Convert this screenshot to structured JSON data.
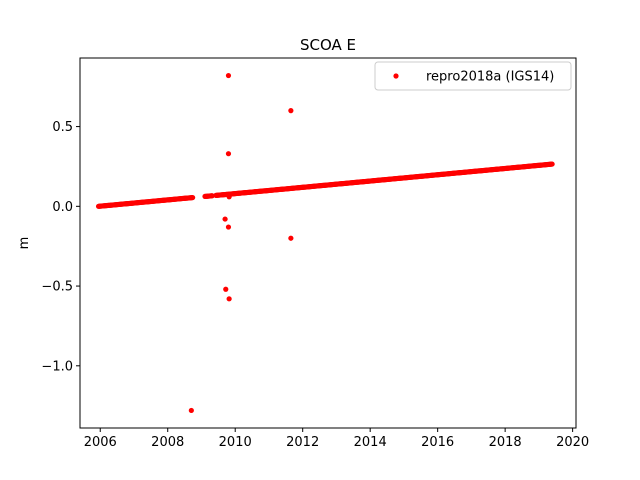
{
  "chart_data": {
    "type": "scatter",
    "title": "SCOA E",
    "xlabel": "",
    "ylabel": "m",
    "xlim": [
      2005.4,
      2020.1
    ],
    "ylim": [
      -1.39,
      0.93
    ],
    "x_ticks": [
      2006,
      2008,
      2010,
      2012,
      2014,
      2016,
      2018,
      2020
    ],
    "x_tick_labels": [
      "2006",
      "2008",
      "2010",
      "2012",
      "2014",
      "2016",
      "2018",
      "2020"
    ],
    "y_ticks": [
      0.5,
      0.0,
      -0.5,
      -1.0
    ],
    "y_tick_labels": [
      "0.5",
      "0.0",
      "−0.5",
      "−1.0"
    ],
    "grid": false,
    "legend": {
      "position": "top-right"
    },
    "colors": {
      "series": "#ff0000"
    },
    "series": [
      {
        "name": "repro2018a (IGS14)",
        "color": "#ff0000",
        "marker": "circle",
        "trend": {
          "x_start": 2005.95,
          "x_end": 2019.4,
          "y_start": 0.0,
          "y_end": 0.265
        },
        "gaps": [
          [
            2008.75,
            2009.1
          ],
          [
            2009.33,
            2009.42
          ]
        ],
        "outliers": [
          {
            "x": 2008.7,
            "y": -1.28
          },
          {
            "x": 2009.7,
            "y": -0.08
          },
          {
            "x": 2009.72,
            "y": -0.52
          },
          {
            "x": 2009.8,
            "y": 0.82
          },
          {
            "x": 2009.8,
            "y": 0.33
          },
          {
            "x": 2009.8,
            "y": -0.13
          },
          {
            "x": 2009.82,
            "y": -0.58
          },
          {
            "x": 2009.82,
            "y": 0.06
          },
          {
            "x": 2011.65,
            "y": 0.6
          },
          {
            "x": 2011.65,
            "y": -0.2
          }
        ]
      }
    ]
  }
}
